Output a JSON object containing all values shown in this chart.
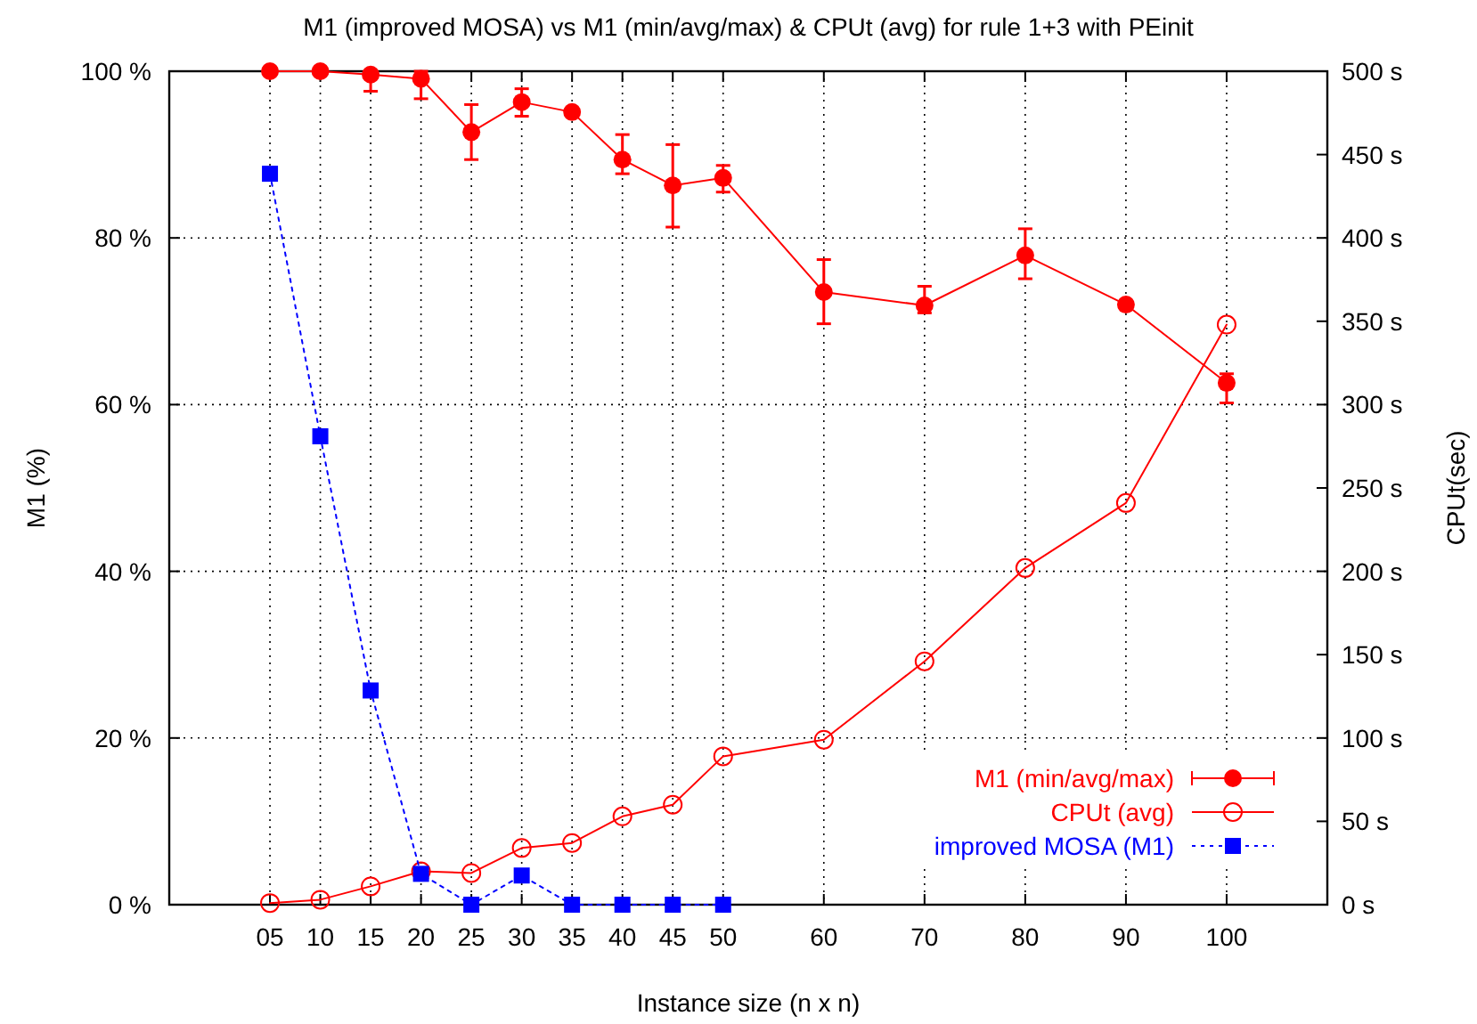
{
  "chart_data": {
    "type": "line",
    "title": "M1 (improved MOSA) vs M1 (min/avg/max) & CPUt (avg) for rule 1+3 with PEinit",
    "xlabel": "Instance size (n x n)",
    "ylabel": "M1 (%)",
    "y2label": "CPUt(sec)",
    "x": [
      5,
      10,
      15,
      20,
      25,
      30,
      35,
      40,
      45,
      50,
      60,
      70,
      80,
      90,
      100
    ],
    "xlim": [
      -5,
      110
    ],
    "xticks": [
      {
        "value": 5,
        "label": "05"
      },
      10,
      15,
      20,
      25,
      30,
      35,
      40,
      45,
      50,
      60,
      70,
      80,
      90,
      100
    ],
    "ylim": [
      0,
      100
    ],
    "yticks": [
      {
        "value": 0,
        "label": "0 %"
      },
      {
        "value": 20,
        "label": "20 %"
      },
      {
        "value": 40,
        "label": "40 %"
      },
      {
        "value": 60,
        "label": "60 %"
      },
      {
        "value": 80,
        "label": "80 %"
      },
      {
        "value": 100,
        "label": "100 %"
      }
    ],
    "y2lim": [
      0,
      500
    ],
    "y2ticks": [
      {
        "value": 0,
        "label": "0 s"
      },
      {
        "value": 50,
        "label": "50 s"
      },
      {
        "value": 100,
        "label": "100 s"
      },
      {
        "value": 150,
        "label": "150 s"
      },
      {
        "value": 200,
        "label": "200 s"
      },
      {
        "value": 250,
        "label": "250 s"
      },
      {
        "value": 300,
        "label": "300 s"
      },
      {
        "value": 350,
        "label": "350 s"
      },
      {
        "value": 400,
        "label": "400 s"
      },
      {
        "value": 450,
        "label": "450 s"
      },
      {
        "value": 500,
        "label": "500 s"
      }
    ],
    "grid": true,
    "legend": "bottom right",
    "series": [
      {
        "name": "M1 (min/avg/max)",
        "color": "#ff0000",
        "marker": "circle",
        "line_style": "solid",
        "values": [
          100,
          100,
          99.6,
          99.1,
          92.7,
          96.3,
          95.1,
          89.4,
          86.3,
          87.2,
          73.5,
          71.9,
          77.9,
          72.0,
          62.6
        ],
        "errors": [
          null,
          null,
          [
            97.6,
            100
          ],
          [
            96.7,
            100
          ],
          [
            89.4,
            96
          ],
          [
            94.6,
            97.9
          ],
          null,
          [
            87.7,
            92.4
          ],
          [
            81.3,
            91.2
          ],
          [
            85.5,
            88.7
          ],
          [
            69.7,
            77.4
          ],
          [
            71,
            74.2
          ],
          [
            75.1,
            81.1
          ],
          null,
          [
            60.2,
            63.7
          ]
        ]
      },
      {
        "name": "CPUt (avg)",
        "color": "#ff0000",
        "marker": "circle-open",
        "line_style": "solid",
        "axis": "y2",
        "values": [
          1,
          3,
          11,
          20,
          19,
          34,
          37,
          53,
          60,
          89,
          99,
          146,
          202,
          241,
          348
        ]
      },
      {
        "name": "improved MOSA (M1)",
        "color": "#0000ff",
        "marker": "square",
        "line_style": "dotted",
        "x": [
          5,
          10,
          15,
          20,
          25,
          30,
          35,
          40,
          45,
          50
        ],
        "values": [
          87.7,
          56.2,
          25.7,
          3.7,
          0,
          3.5,
          0,
          0,
          0,
          0
        ]
      }
    ]
  }
}
